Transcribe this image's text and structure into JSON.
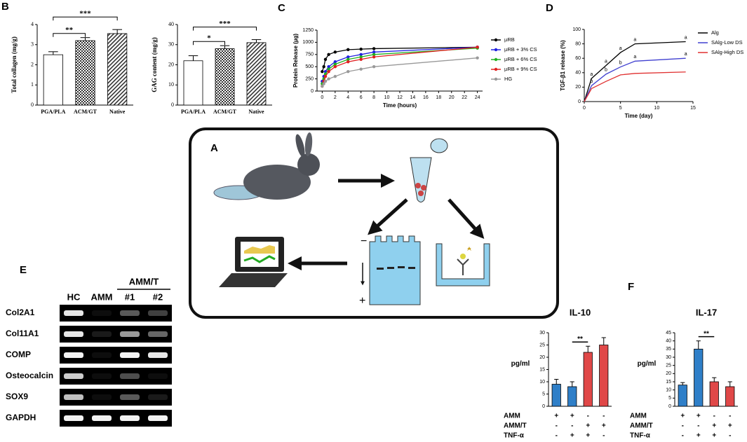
{
  "labels": [
    "A",
    "B",
    "C",
    "D",
    "E",
    "F"
  ],
  "chart_data": [
    {
      "type": "bar",
      "ylabel": "Total collagen (mg/g)",
      "categories": [
        "PGA/PLA",
        "ACM/GT",
        "Native"
      ],
      "values": [
        2.5,
        3.2,
        3.55
      ],
      "errors": [
        0.15,
        0.15,
        0.2
      ],
      "fills": [
        "#ffffff",
        "url(#checker)",
        "url(#hatch)"
      ],
      "ylim": [
        0,
        4
      ],
      "yticks": [
        0,
        1,
        2,
        3,
        4
      ],
      "significance": [
        {
          "text": "**",
          "pair": [
            0,
            1
          ]
        },
        {
          "text": "***",
          "pair": [
            0,
            2
          ]
        }
      ]
    },
    {
      "type": "bar",
      "ylabel": "GAG content (mg/g)",
      "categories": [
        "PGA/PLA",
        "ACM/GT",
        "Native"
      ],
      "values": [
        22,
        28,
        31
      ],
      "errors": [
        2.5,
        1.5,
        1.5
      ],
      "fills": [
        "#ffffff",
        "url(#checker)",
        "url(#hatch)"
      ],
      "ylim": [
        0,
        40
      ],
      "yticks": [
        0,
        10,
        20,
        30,
        40
      ],
      "significance": [
        {
          "text": "*",
          "pair": [
            0,
            1
          ]
        },
        {
          "text": "***",
          "pair": [
            0,
            2
          ]
        }
      ]
    },
    {
      "type": "line",
      "ylabel": "Protein Release (µg)",
      "xlabel": "Time (hours)",
      "markers": true,
      "x": [
        0,
        0.25,
        0.5,
        1,
        2,
        4,
        6,
        8,
        24
      ],
      "xlim": [
        -0.8,
        24.8
      ],
      "xticks": [
        0,
        2,
        4,
        6,
        8,
        10,
        12,
        14,
        16,
        18,
        20,
        22,
        24
      ],
      "ylim": [
        0,
        1250
      ],
      "yticks": [
        0,
        250,
        500,
        750,
        1000,
        1250
      ],
      "series": [
        {
          "name": "µRB",
          "color": "#000000",
          "values": [
            400,
            500,
            650,
            750,
            800,
            850,
            860,
            870,
            900
          ]
        },
        {
          "name": "µRB + 3% CS",
          "color": "#2020e0",
          "values": [
            200,
            300,
            400,
            500,
            600,
            700,
            750,
            800,
            900
          ]
        },
        {
          "name": "µRB + 6% CS",
          "color": "#20b020",
          "values": [
            150,
            250,
            350,
            450,
            550,
            650,
            700,
            750,
            880
          ]
        },
        {
          "name": "µRB + 9% CS",
          "color": "#e02020",
          "values": [
            100,
            200,
            300,
            400,
            500,
            600,
            650,
            700,
            900
          ]
        },
        {
          "name": "HG",
          "color": "#999999",
          "values": [
            100,
            150,
            200,
            250,
            300,
            400,
            450,
            500,
            680
          ]
        }
      ]
    },
    {
      "type": "line",
      "ylabel": "TGF-β1 release (%)",
      "xlabel": "Time (day)",
      "markers": false,
      "x": [
        0,
        1,
        3,
        5,
        7,
        14
      ],
      "xlim": [
        0,
        15
      ],
      "xticks": [
        0,
        5,
        10,
        15
      ],
      "ylim": [
        0,
        100
      ],
      "yticks": [
        0,
        20,
        40,
        60,
        80,
        100
      ],
      "series": [
        {
          "name": "Alg",
          "color": "#000000",
          "values": [
            0,
            32,
            50,
            68,
            80,
            83
          ],
          "point_labels": [
            null,
            "a",
            "a",
            "a",
            "a",
            "a"
          ]
        },
        {
          "name": "SAlg-Low DS",
          "color": "#4040d0",
          "values": [
            0,
            22,
            38,
            48,
            56,
            60
          ],
          "point_labels": [
            null,
            "b",
            "b",
            "b",
            "a",
            "a"
          ]
        },
        {
          "name": "SAlg-High DS",
          "color": "#e03030",
          "values": [
            0,
            18,
            28,
            37,
            39,
            41
          ]
        }
      ]
    },
    {
      "type": "bar",
      "title": "IL-10",
      "ylabel": "pg/ml",
      "values": [
        9,
        8,
        22,
        25
      ],
      "errors": [
        2,
        2,
        2.5,
        3
      ],
      "fills": [
        "#2f7fc8",
        "#2f7fc8",
        "#e04848",
        "#e04848"
      ],
      "ylim": [
        0,
        30
      ],
      "yticks": [
        0,
        5,
        10,
        15,
        20,
        25,
        30
      ],
      "significance": [
        {
          "text": "**",
          "pair": [
            1,
            2
          ]
        }
      ],
      "conditions": [
        {
          "label": "AMM",
          "signs": [
            "+",
            "+",
            "-",
            "-"
          ]
        },
        {
          "label": "AMM/T",
          "signs": [
            "-",
            "-",
            "+",
            "+"
          ]
        },
        {
          "label": "TNF-α",
          "signs": [
            "-",
            "+",
            "+",
            "-"
          ]
        }
      ]
    },
    {
      "type": "bar",
      "title": "IL-17",
      "ylabel": "pg/ml",
      "values": [
        13,
        35,
        15,
        12
      ],
      "errors": [
        1.5,
        5,
        2.5,
        3
      ],
      "fills": [
        "#2f7fc8",
        "#2f7fc8",
        "#e04848",
        "#e04848"
      ],
      "ylim": [
        0,
        45
      ],
      "yticks": [
        0,
        5,
        10,
        15,
        20,
        25,
        30,
        35,
        40,
        45
      ],
      "significance": [
        {
          "text": "**",
          "pair": [
            1,
            2
          ]
        }
      ],
      "conditions": [
        {
          "label": "AMM",
          "signs": [
            "+",
            "+",
            "-",
            "-"
          ]
        },
        {
          "label": "AMM/T",
          "signs": [
            "-",
            "-",
            "+",
            "+"
          ]
        },
        {
          "label": "TNF-α",
          "signs": [
            "-",
            "+",
            "+",
            "-"
          ]
        }
      ]
    }
  ],
  "panel_a": {
    "gel_top": "−",
    "gel_bottom": "+"
  },
  "panel_e": {
    "lanes": [
      "HC",
      "AMM",
      "#1",
      "#2"
    ],
    "group": "AMM/T",
    "genes": [
      "Col2A1",
      "Col11A1",
      "COMP",
      "Osteocalcin",
      "SOX9",
      "GAPDH"
    ],
    "intensity": [
      [
        0.9,
        0.05,
        0.35,
        0.25
      ],
      [
        0.9,
        0.1,
        0.6,
        0.4
      ],
      [
        0.95,
        0.05,
        0.95,
        0.9
      ],
      [
        0.8,
        0.05,
        0.3,
        0.05
      ],
      [
        0.75,
        0.05,
        0.35,
        0.1
      ],
      [
        0.95,
        0.95,
        0.95,
        0.95
      ]
    ]
  }
}
